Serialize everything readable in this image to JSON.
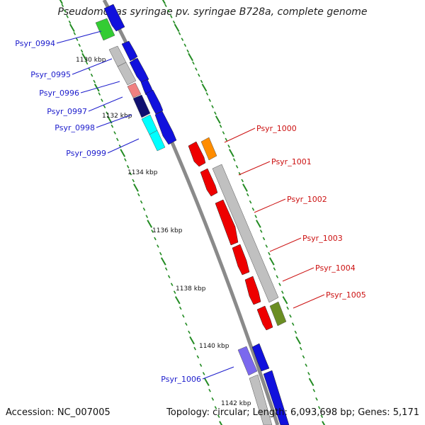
{
  "title": "Pseudomonas syringae pv. syringae B728a, complete genome",
  "footer": {
    "accession": "Accession: NC_007005",
    "topology": "Topology: circular;",
    "length": "Length: 6,093,698 bp;",
    "genes": "Genes: 5,171"
  },
  "colors": {
    "backbone": "#8a8a8a",
    "tick": "#228b22",
    "left_label": "#1c1ccc",
    "right_label": "#cc1111",
    "scale_text": "#111111"
  },
  "scale_labels": [
    "1130 kbp",
    "1132 kbp",
    "1134 kbp",
    "1136 kbp",
    "1138 kbp",
    "1140 kbp",
    "1142 kbp"
  ],
  "left_genes": [
    {
      "label": "Psyr_0994",
      "box_color": "#33cc33",
      "arrow_color": "#1111dd"
    },
    {
      "label": "Psyr_0995",
      "box_color": "#c0c0c0",
      "arrow_color": "#1111dd"
    },
    {
      "label": "Psyr_0996",
      "box_color": "#f08080",
      "arrow_color": "#1111dd"
    },
    {
      "label": "Psyr_0997",
      "box_color": "#101070",
      "arrow_color": "#1111dd"
    },
    {
      "label": "Psyr_0998",
      "box_color": "#00ffff",
      "arrow_color": "#1111dd"
    },
    {
      "label": "Psyr_0999",
      "box_color": "#00ffff",
      "arrow_color": "#1111dd"
    },
    {
      "label": "Psyr_1006",
      "box_color": "#7b68ee",
      "arrow_color": "#1111dd"
    }
  ],
  "right_genes": [
    {
      "label": "Psyr_1000",
      "box_color": "#ff8c00",
      "arrow_color": "#ee0000"
    },
    {
      "label": "Psyr_1001",
      "box_color": "#c0c0c0",
      "arrow_color": "#ee0000"
    },
    {
      "label": "Psyr_1002",
      "box_color": "#c0c0c0",
      "arrow_color": "#ee0000"
    },
    {
      "label": "Psyr_1003",
      "box_color": "#c0c0c0",
      "arrow_color": "#ee0000"
    },
    {
      "label": "Psyr_1004",
      "box_color": "#c0c0c0",
      "arrow_color": "#ee0000"
    },
    {
      "label": "Psyr_1005",
      "box_color": "#6b8e23",
      "arrow_color": "#ee0000"
    }
  ]
}
